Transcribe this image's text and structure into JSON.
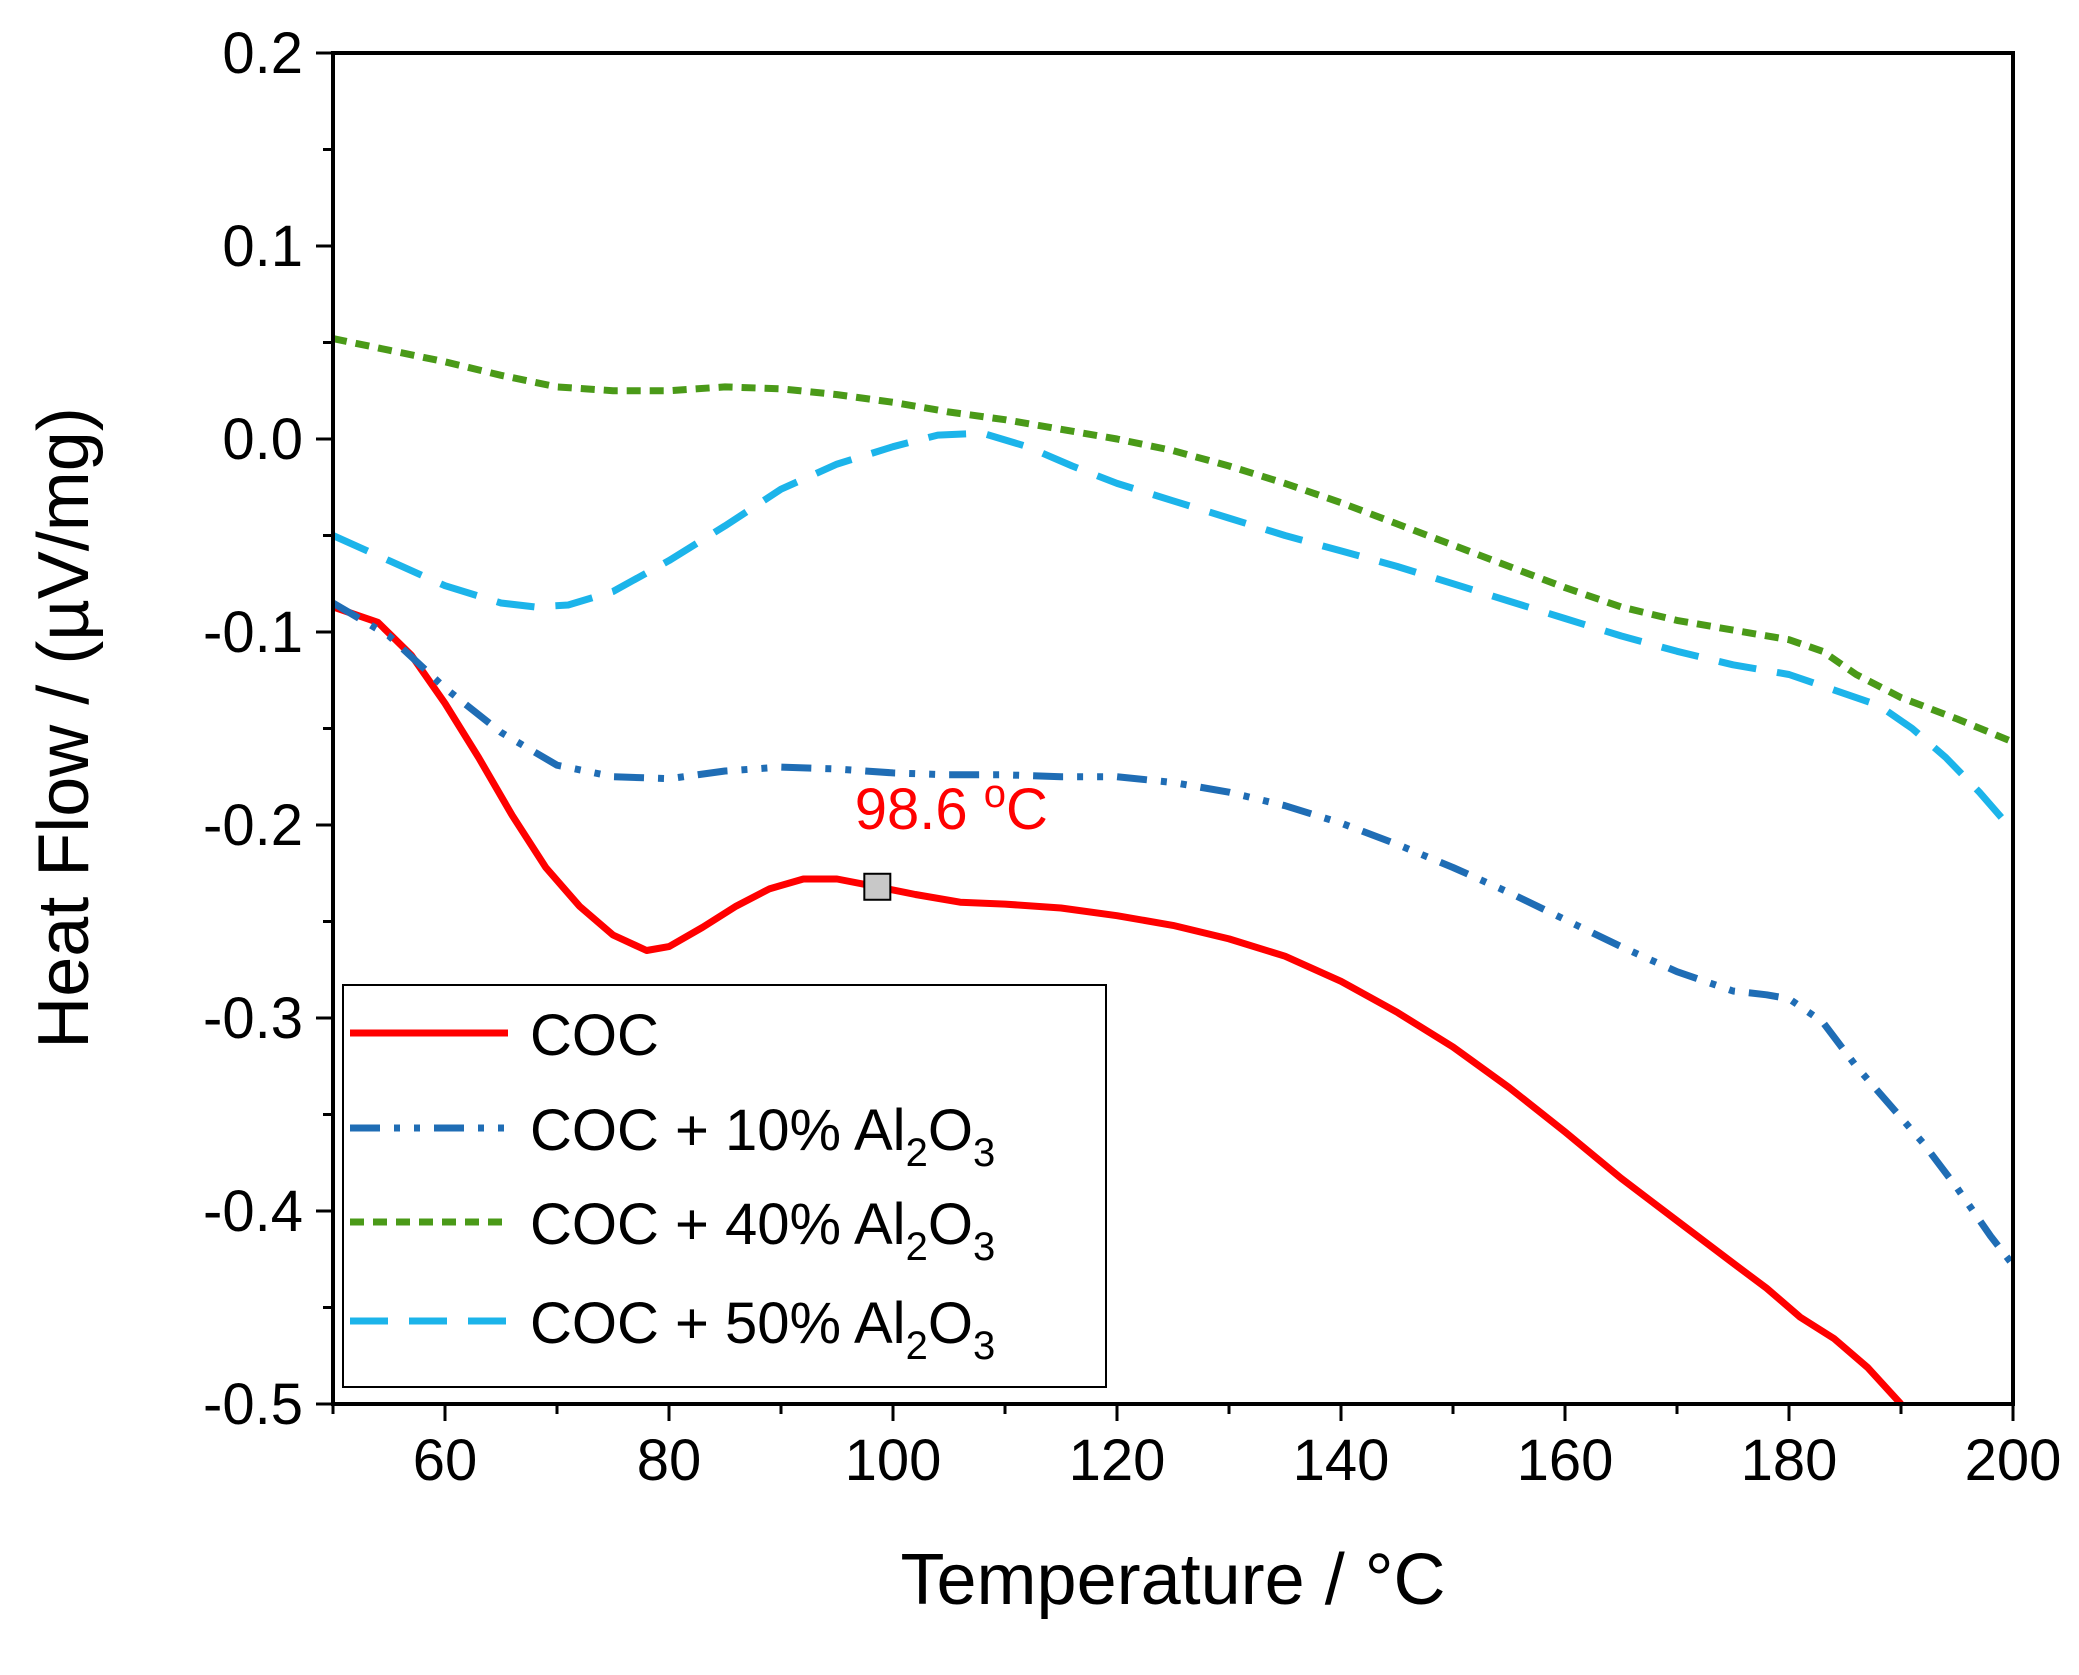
{
  "chart_data": {
    "type": "line",
    "title": "",
    "xlabel": "Temperature / °C",
    "ylabel": "Heat Flow / (µV/mg)",
    "xlim": [
      50,
      200
    ],
    "ylim": [
      -0.5,
      0.2
    ],
    "x_ticks": [
      60,
      80,
      100,
      120,
      140,
      160,
      180,
      200
    ],
    "y_ticks": [
      0.2,
      0.1,
      0.0,
      -0.1,
      -0.2,
      -0.3,
      -0.4,
      -0.5
    ],
    "x_tick_labels": [
      "60",
      "80",
      "100",
      "120",
      "140",
      "160",
      "180",
      "200"
    ],
    "y_tick_labels": [
      "0.2",
      "0.1",
      "0.0",
      "-0.1",
      "-0.2",
      "-0.3",
      "-0.4",
      "-0.5"
    ],
    "grid": false,
    "legend_position": "bottom-left",
    "series": [
      {
        "name": "COC",
        "color": "#ff0000",
        "style": "solid",
        "points": [
          [
            50,
            -0.087
          ],
          [
            54,
            -0.095
          ],
          [
            57,
            -0.112
          ],
          [
            60,
            -0.137
          ],
          [
            63,
            -0.165
          ],
          [
            66,
            -0.195
          ],
          [
            69,
            -0.222
          ],
          [
            72,
            -0.242
          ],
          [
            75,
            -0.257
          ],
          [
            78,
            -0.265
          ],
          [
            80,
            -0.263
          ],
          [
            83,
            -0.253
          ],
          [
            86,
            -0.242
          ],
          [
            89,
            -0.233
          ],
          [
            92,
            -0.228
          ],
          [
            95,
            -0.228
          ],
          [
            98.6,
            -0.232
          ],
          [
            102,
            -0.236
          ],
          [
            106,
            -0.24
          ],
          [
            110,
            -0.241
          ],
          [
            115,
            -0.243
          ],
          [
            120,
            -0.247
          ],
          [
            125,
            -0.252
          ],
          [
            130,
            -0.259
          ],
          [
            135,
            -0.268
          ],
          [
            140,
            -0.281
          ],
          [
            145,
            -0.297
          ],
          [
            150,
            -0.315
          ],
          [
            155,
            -0.336
          ],
          [
            160,
            -0.359
          ],
          [
            165,
            -0.383
          ],
          [
            170,
            -0.405
          ],
          [
            175,
            -0.427
          ],
          [
            178,
            -0.44
          ],
          [
            181,
            -0.455
          ],
          [
            184,
            -0.466
          ],
          [
            187,
            -0.481
          ],
          [
            190,
            -0.5
          ]
        ]
      },
      {
        "name": "COC + 10% Al2O3",
        "color": "#1f6db5",
        "style": "dash-dot-dot",
        "points": [
          [
            50,
            -0.085
          ],
          [
            55,
            -0.102
          ],
          [
            60,
            -0.129
          ],
          [
            65,
            -0.152
          ],
          [
            70,
            -0.169
          ],
          [
            75,
            -0.175
          ],
          [
            80,
            -0.176
          ],
          [
            85,
            -0.172
          ],
          [
            90,
            -0.17
          ],
          [
            95,
            -0.171
          ],
          [
            100,
            -0.173
          ],
          [
            105,
            -0.174
          ],
          [
            110,
            -0.174
          ],
          [
            115,
            -0.175
          ],
          [
            120,
            -0.175
          ],
          [
            125,
            -0.178
          ],
          [
            130,
            -0.183
          ],
          [
            135,
            -0.19
          ],
          [
            140,
            -0.199
          ],
          [
            145,
            -0.21
          ],
          [
            150,
            -0.222
          ],
          [
            155,
            -0.235
          ],
          [
            160,
            -0.249
          ],
          [
            165,
            -0.263
          ],
          [
            170,
            -0.276
          ],
          [
            175,
            -0.286
          ],
          [
            178,
            -0.288
          ],
          [
            180,
            -0.29
          ],
          [
            183,
            -0.302
          ],
          [
            186,
            -0.325
          ],
          [
            189,
            -0.345
          ],
          [
            192,
            -0.365
          ],
          [
            195,
            -0.388
          ],
          [
            198,
            -0.413
          ],
          [
            200,
            -0.428
          ]
        ]
      },
      {
        "name": "COC + 40% Al2O3",
        "color": "#4a9a18",
        "style": "short-dash",
        "points": [
          [
            50,
            0.052
          ],
          [
            55,
            0.046
          ],
          [
            60,
            0.04
          ],
          [
            65,
            0.033
          ],
          [
            70,
            0.027
          ],
          [
            75,
            0.025
          ],
          [
            80,
            0.025
          ],
          [
            85,
            0.027
          ],
          [
            90,
            0.026
          ],
          [
            95,
            0.023
          ],
          [
            100,
            0.019
          ],
          [
            105,
            0.014
          ],
          [
            110,
            0.01
          ],
          [
            115,
            0.005
          ],
          [
            120,
            0.0
          ],
          [
            125,
            -0.006
          ],
          [
            130,
            -0.014
          ],
          [
            135,
            -0.023
          ],
          [
            140,
            -0.033
          ],
          [
            145,
            -0.044
          ],
          [
            150,
            -0.055
          ],
          [
            155,
            -0.066
          ],
          [
            160,
            -0.077
          ],
          [
            165,
            -0.087
          ],
          [
            170,
            -0.094
          ],
          [
            175,
            -0.099
          ],
          [
            180,
            -0.104
          ],
          [
            183,
            -0.11
          ],
          [
            186,
            -0.122
          ],
          [
            190,
            -0.134
          ],
          [
            195,
            -0.145
          ],
          [
            200,
            -0.157
          ]
        ]
      },
      {
        "name": "COC + 50% Al2O3",
        "color": "#1cb4ea",
        "style": "long-dash",
        "points": [
          [
            50,
            -0.05
          ],
          [
            55,
            -0.063
          ],
          [
            60,
            -0.076
          ],
          [
            65,
            -0.085
          ],
          [
            68,
            -0.087
          ],
          [
            71,
            -0.086
          ],
          [
            75,
            -0.079
          ],
          [
            80,
            -0.063
          ],
          [
            85,
            -0.045
          ],
          [
            90,
            -0.026
          ],
          [
            95,
            -0.013
          ],
          [
            100,
            -0.004
          ],
          [
            104,
            0.002
          ],
          [
            108,
            0.003
          ],
          [
            112,
            -0.004
          ],
          [
            116,
            -0.014
          ],
          [
            120,
            -0.023
          ],
          [
            125,
            -0.032
          ],
          [
            130,
            -0.041
          ],
          [
            135,
            -0.05
          ],
          [
            140,
            -0.058
          ],
          [
            145,
            -0.066
          ],
          [
            150,
            -0.075
          ],
          [
            155,
            -0.084
          ],
          [
            160,
            -0.093
          ],
          [
            165,
            -0.102
          ],
          [
            170,
            -0.11
          ],
          [
            175,
            -0.117
          ],
          [
            180,
            -0.122
          ],
          [
            184,
            -0.13
          ],
          [
            188,
            -0.138
          ],
          [
            191,
            -0.15
          ],
          [
            194,
            -0.165
          ],
          [
            197,
            -0.183
          ],
          [
            200,
            -0.203
          ]
        ]
      }
    ],
    "legend_entries": [
      {
        "base": "COC",
        "sub1": "",
        "mid": "",
        "sub2": ""
      },
      {
        "base": "COC + 10% Al",
        "sub1": "2",
        "mid": "O",
        "sub2": "3"
      },
      {
        "base": "COC + 40% Al",
        "sub1": "2",
        "mid": "O",
        "sub2": "3"
      },
      {
        "base": "COC + 50% Al",
        "sub1": "2",
        "mid": "O",
        "sub2": "3"
      }
    ],
    "annotation": {
      "value": "98.6",
      "unit_sup": "o",
      "unit": "C",
      "x": 98.6,
      "y": -0.232,
      "color": "#ff0000"
    }
  }
}
